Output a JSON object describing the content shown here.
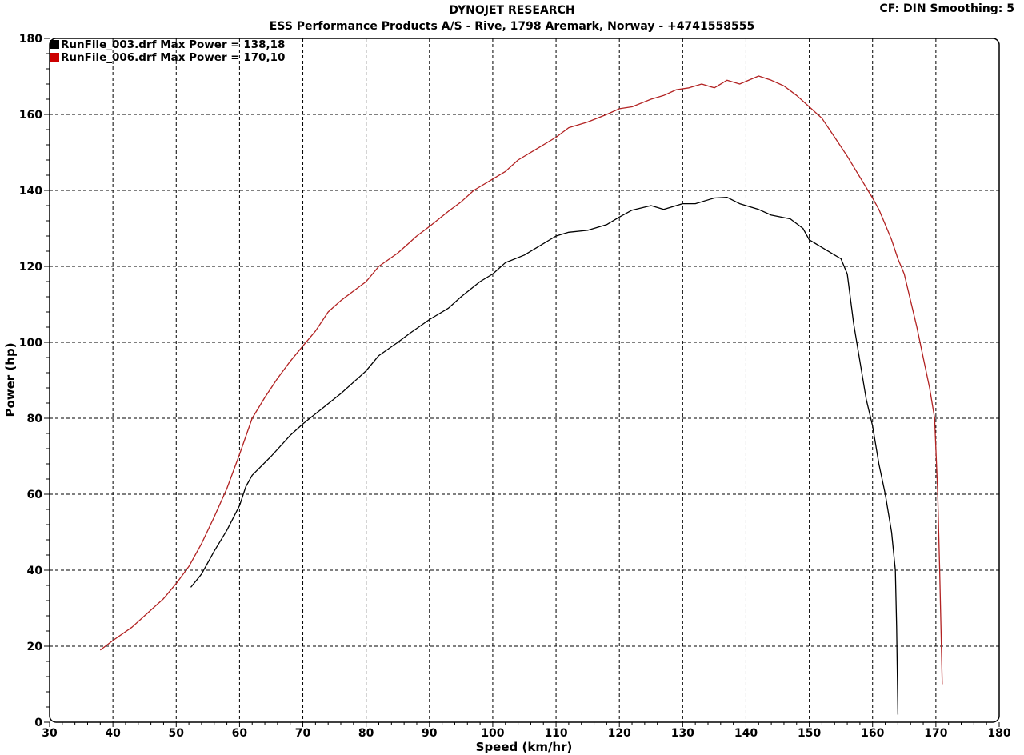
{
  "header": {
    "title": "DYNOJET RESEARCH",
    "subtitle": "ESS Performance Products A/S - Rive, 1798 Aremark, Norway - +4741558555",
    "cf_info": "CF: DIN  Smoothing: 5"
  },
  "chart_data": {
    "type": "line",
    "xlabel": "Speed (km/hr)",
    "ylabel": "Power (hp)",
    "xlim": [
      30,
      180
    ],
    "ylim": [
      0,
      180
    ],
    "x_ticks": [
      30,
      40,
      50,
      60,
      70,
      80,
      90,
      100,
      110,
      120,
      130,
      140,
      150,
      160,
      170,
      180
    ],
    "y_ticks": [
      0,
      20,
      40,
      60,
      80,
      100,
      120,
      140,
      160,
      180
    ],
    "grid": true,
    "legend_position": "top-left",
    "series": [
      {
        "name": "RunFile_003.drf Max Power = 138,18",
        "color": "#000000",
        "points": [
          [
            52.3,
            35.5
          ],
          [
            54,
            39
          ],
          [
            56,
            45
          ],
          [
            58,
            50.5
          ],
          [
            60,
            57
          ],
          [
            61,
            62
          ],
          [
            62,
            65
          ],
          [
            65,
            70
          ],
          [
            68,
            75.5
          ],
          [
            70,
            78.5
          ],
          [
            73,
            82.5
          ],
          [
            76,
            86.5
          ],
          [
            79,
            91
          ],
          [
            80,
            92.5
          ],
          [
            82,
            96.5
          ],
          [
            85,
            100
          ],
          [
            87,
            102.5
          ],
          [
            90,
            106
          ],
          [
            93,
            109
          ],
          [
            95,
            112
          ],
          [
            98,
            116
          ],
          [
            100,
            118
          ],
          [
            102,
            121
          ],
          [
            105,
            123
          ],
          [
            107,
            125
          ],
          [
            110,
            128
          ],
          [
            112,
            129
          ],
          [
            115,
            129.5
          ],
          [
            118,
            131
          ],
          [
            120,
            133
          ],
          [
            122,
            134.8
          ],
          [
            125,
            136
          ],
          [
            127,
            135
          ],
          [
            130,
            136.5
          ],
          [
            132,
            136.5
          ],
          [
            135,
            138
          ],
          [
            137,
            138.2
          ],
          [
            139,
            136.5
          ],
          [
            142,
            135
          ],
          [
            144,
            133.5
          ],
          [
            147,
            132.5
          ],
          [
            149,
            130
          ],
          [
            150,
            127
          ],
          [
            152,
            125
          ],
          [
            154,
            123
          ],
          [
            155,
            122
          ],
          [
            156,
            118
          ],
          [
            157,
            105
          ],
          [
            158,
            95
          ],
          [
            159,
            85
          ],
          [
            160,
            78
          ],
          [
            161,
            68
          ],
          [
            162,
            60
          ],
          [
            163,
            50
          ],
          [
            163.6,
            40
          ],
          [
            163.8,
            25
          ],
          [
            164,
            2
          ]
        ]
      },
      {
        "name": "RunFile_006.drf Max Power = 170,10",
        "color": "#b22222",
        "points": [
          [
            38,
            19
          ],
          [
            40,
            21.5
          ],
          [
            43,
            25
          ],
          [
            45,
            28
          ],
          [
            48,
            32.5
          ],
          [
            50,
            36.5
          ],
          [
            52,
            41
          ],
          [
            54,
            47
          ],
          [
            56,
            54
          ],
          [
            58,
            61.5
          ],
          [
            60,
            70.5
          ],
          [
            62,
            80
          ],
          [
            64,
            85.5
          ],
          [
            66,
            90.5
          ],
          [
            68,
            95
          ],
          [
            70,
            99
          ],
          [
            72,
            103
          ],
          [
            74,
            108
          ],
          [
            76,
            111
          ],
          [
            78,
            113.5
          ],
          [
            80,
            116
          ],
          [
            82,
            120
          ],
          [
            85,
            123.5
          ],
          [
            88,
            128
          ],
          [
            90,
            130.5
          ],
          [
            93,
            134.5
          ],
          [
            95,
            137
          ],
          [
            97,
            140
          ],
          [
            100,
            143
          ],
          [
            102,
            145
          ],
          [
            104,
            148
          ],
          [
            107,
            151
          ],
          [
            110,
            154
          ],
          [
            112,
            156.5
          ],
          [
            115,
            158
          ],
          [
            118,
            160
          ],
          [
            120,
            161.5
          ],
          [
            122,
            162
          ],
          [
            125,
            164
          ],
          [
            127,
            165
          ],
          [
            129,
            166.5
          ],
          [
            131,
            167
          ],
          [
            133,
            168
          ],
          [
            135,
            167
          ],
          [
            137,
            169
          ],
          [
            139,
            168
          ],
          [
            142,
            170.1
          ],
          [
            144,
            169
          ],
          [
            146,
            167.5
          ],
          [
            148,
            165
          ],
          [
            150,
            162
          ],
          [
            152,
            159
          ],
          [
            154,
            154
          ],
          [
            156,
            149
          ],
          [
            158,
            143.5
          ],
          [
            160,
            138
          ],
          [
            161,
            135
          ],
          [
            162,
            131
          ],
          [
            163,
            127
          ],
          [
            164,
            122
          ],
          [
            165,
            118
          ],
          [
            166,
            111
          ],
          [
            167,
            104
          ],
          [
            168,
            96
          ],
          [
            169,
            88
          ],
          [
            169.8,
            80
          ],
          [
            170.3,
            60
          ],
          [
            170.6,
            40
          ],
          [
            171,
            10
          ]
        ]
      }
    ]
  }
}
